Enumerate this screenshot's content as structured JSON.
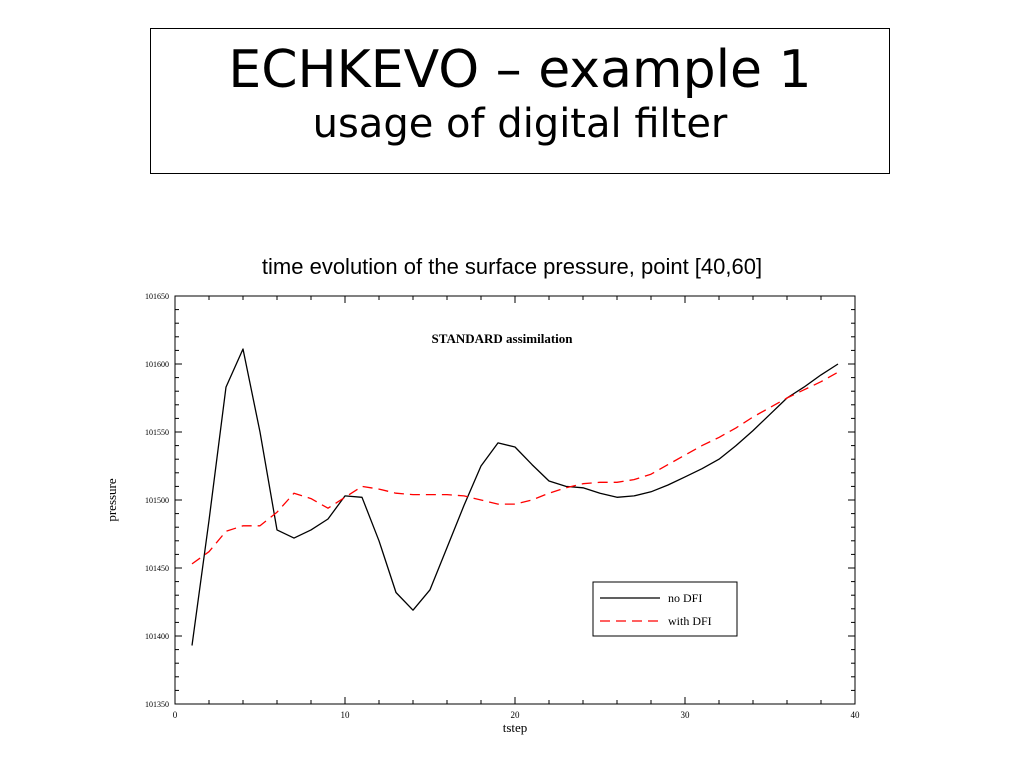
{
  "slide": {
    "title": "ECHKEVO – example 1",
    "subtitle": "usage of digital filter",
    "caption": "time evolution of the surface pressure, point [40,60]"
  },
  "chart_data": {
    "type": "line",
    "title": "STANDARD assimilation",
    "xlabel": "tstep",
    "ylabel": "pressure",
    "xlim": [
      0,
      40
    ],
    "ylim": [
      101350,
      101650
    ],
    "x_ticks": [
      0,
      10,
      20,
      30,
      40
    ],
    "y_ticks": [
      101350,
      101400,
      101450,
      101500,
      101550,
      101600,
      101650
    ],
    "grid": false,
    "legend_position": "bottom-right",
    "series": [
      {
        "name": "no DFI",
        "color": "#000000",
        "style": "solid",
        "x": [
          1,
          2,
          3,
          4,
          5,
          6,
          7,
          8,
          9,
          10,
          11,
          12,
          13,
          14,
          15,
          16,
          17,
          18,
          19,
          20,
          21,
          22,
          23,
          24,
          25,
          26,
          27,
          28,
          29,
          30,
          31,
          32,
          33,
          34,
          35,
          36,
          37,
          38,
          39
        ],
        "values": [
          101393,
          101485,
          101583,
          101611,
          101550,
          101478,
          101472,
          101478,
          101486,
          101503,
          101502,
          101470,
          101432,
          101419,
          101434,
          101465,
          101496,
          101525,
          101542,
          101539,
          101526,
          101514,
          101510,
          101509,
          101505,
          101502,
          101503,
          101506,
          101511,
          101517,
          101523,
          101530,
          101540,
          101551,
          101563,
          101575,
          101583,
          101592,
          101600
        ]
      },
      {
        "name": "with DFI",
        "color": "#ff0000",
        "style": "dashed",
        "x": [
          1,
          2,
          3,
          4,
          5,
          6,
          7,
          8,
          9,
          10,
          11,
          12,
          13,
          14,
          15,
          16,
          17,
          18,
          19,
          20,
          21,
          22,
          23,
          24,
          25,
          26,
          27,
          28,
          29,
          30,
          31,
          32,
          33,
          34,
          35,
          36,
          37,
          38,
          39
        ],
        "values": [
          101453,
          101462,
          101477,
          101481,
          101481,
          101491,
          101505,
          101501,
          101494,
          101502,
          101510,
          101508,
          101505,
          101504,
          101504,
          101504,
          101503,
          101500,
          101497,
          101497,
          101500,
          101505,
          101509,
          101512,
          101513,
          101513,
          101515,
          101519,
          101526,
          101533,
          101540,
          101546,
          101553,
          101561,
          101568,
          101575,
          101581,
          101587,
          101594
        ]
      }
    ]
  }
}
